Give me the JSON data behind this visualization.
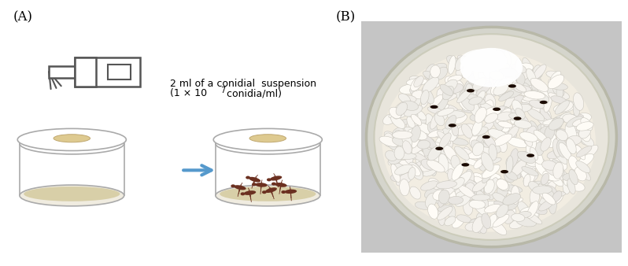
{
  "label_A": "(A)",
  "label_B": "(B)",
  "annotation_line1": "2 ml of a conidial  suspension",
  "annotation_line2": "(1 × 10",
  "annotation_sup": "7",
  "annotation_end": " conidia/ml)",
  "bg_color": "#ffffff",
  "label_fontsize": 12,
  "annotation_fontsize": 9,
  "fig_width": 7.98,
  "fig_height": 3.38,
  "gun_gray": "#555555",
  "dish_gray": "#aaaaaa",
  "rice_color": "#d8cfa8",
  "bug_color": "#6B3020",
  "arrow_color": "#5599cc",
  "photo_bg": "#c8c8c8",
  "photo_dish_rim": "#ccccbb",
  "photo_rice_base": "#f5f2ea",
  "photo_mold": "#ffffff",
  "photo_bug": "#1a0a00"
}
